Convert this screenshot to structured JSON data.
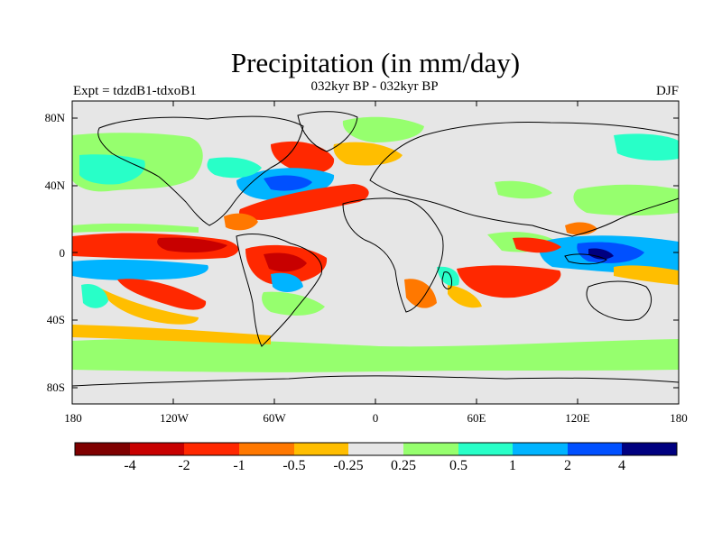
{
  "title": "Precipitation (in mm/day)",
  "subtitle": "032kyr BP - 032kyr BP",
  "left_label": "Expt = tdzdB1-tdxoB1",
  "right_label": "DJF",
  "lat_ticks": [
    "80N",
    "40N",
    "0",
    "40S",
    "80S"
  ],
  "lon_ticks": [
    "180",
    "120W",
    "60W",
    "0",
    "60E",
    "120E",
    "180"
  ],
  "colorbar": {
    "colors": [
      "#7f0000",
      "#c80000",
      "#ff2800",
      "#ff7800",
      "#ffbe00",
      "#e6e6e6",
      "#96ff6e",
      "#28ffc8",
      "#00b4ff",
      "#0050ff",
      "#000080"
    ],
    "labels": [
      "-4",
      "-2",
      "-1",
      "-0.5",
      "-0.25",
      "0.25",
      "0.5",
      "1",
      "2",
      "4"
    ]
  },
  "colors": {
    "frame": "#000000",
    "background": "#e6e6e6",
    "coast": "#000000"
  }
}
